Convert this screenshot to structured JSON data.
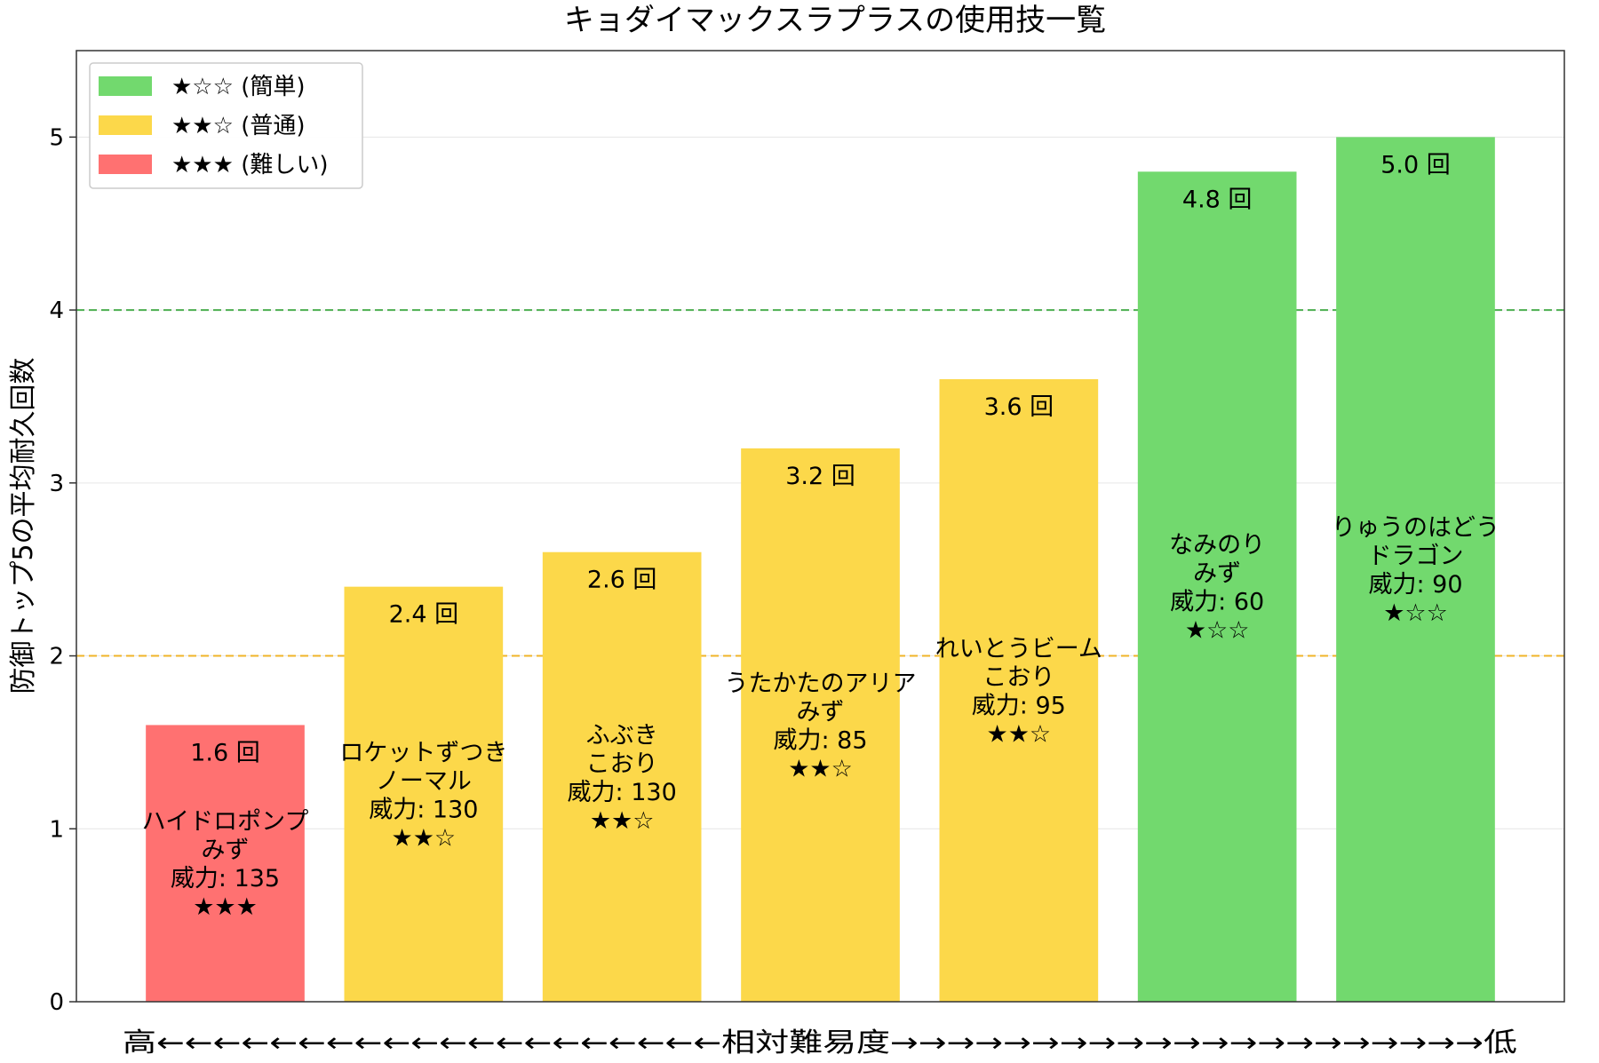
{
  "chart_data": {
    "type": "bar",
    "title": "キョダイマックスラプラスの使用技一覧",
    "ylabel": "防御トップ5の平均耐久回数",
    "xlabel": "高←←←←←←←←←←←←←←←←←←←←相対難易度→→→→→→→→→→→→→→→→→→→→→低",
    "ylim": [
      0,
      5.5
    ],
    "yticks": [
      0,
      1,
      2,
      3,
      4,
      5
    ],
    "grid": true,
    "reference_lines": [
      {
        "y": 4,
        "color": "#4caf50"
      },
      {
        "y": 2,
        "color": "#f0b429"
      }
    ],
    "colors": {
      "easy": "#72d96e",
      "normal": "#fcd84a",
      "hard": "#ff7171"
    },
    "legend": {
      "position": "top-left",
      "entries": [
        {
          "label": "★☆☆ (簡単)",
          "color": "#72d96e"
        },
        {
          "label": "★★☆ (普通)",
          "color": "#fcd84a"
        },
        {
          "label": "★★★ (難しい)",
          "color": "#ff7171"
        }
      ]
    },
    "bars": [
      {
        "value": 1.6,
        "value_label": "1.6 回",
        "move": "ハイドロポンプ",
        "type": "みず",
        "power": "威力: 135",
        "stars": "★★★",
        "color": "#ff7171"
      },
      {
        "value": 2.4,
        "value_label": "2.4 回",
        "move": "ロケットずつき",
        "type": "ノーマル",
        "power": "威力: 130",
        "stars": "★★☆",
        "color": "#fcd84a"
      },
      {
        "value": 2.6,
        "value_label": "2.6 回",
        "move": "ふぶき",
        "type": "こおり",
        "power": "威力: 130",
        "stars": "★★☆",
        "color": "#fcd84a"
      },
      {
        "value": 3.2,
        "value_label": "3.2 回",
        "move": "うたかたのアリア",
        "type": "みず",
        "power": "威力: 85",
        "stars": "★★☆",
        "color": "#fcd84a"
      },
      {
        "value": 3.6,
        "value_label": "3.6 回",
        "move": "れいとうビーム",
        "type": "こおり",
        "power": "威力: 95",
        "stars": "★★☆",
        "color": "#fcd84a"
      },
      {
        "value": 4.8,
        "value_label": "4.8 回",
        "move": "なみのり",
        "type": "みず",
        "power": "威力: 60",
        "stars": "★☆☆",
        "color": "#72d96e"
      },
      {
        "value": 5.0,
        "value_label": "5.0 回",
        "move": "りゅうのはどう",
        "type": "ドラゴン",
        "power": "威力: 90",
        "stars": "★☆☆",
        "color": "#72d96e"
      }
    ]
  }
}
